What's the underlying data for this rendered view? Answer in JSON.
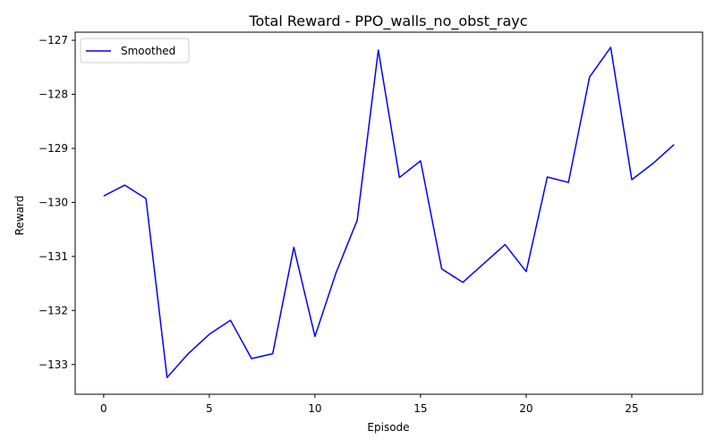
{
  "chart_data": {
    "type": "line",
    "title": "Total Reward - PPO_walls_no_obst_rayc",
    "xlabel": "Episode",
    "ylabel": "Reward",
    "xlim": [
      -1.35,
      28.35
    ],
    "ylim": [
      -133.55,
      -126.85
    ],
    "xticks": [
      0,
      5,
      10,
      15,
      20,
      25
    ],
    "yticks": [
      -133,
      -132,
      -131,
      -130,
      -129,
      -128,
      -127
    ],
    "grid": false,
    "legend_position": "top-left",
    "series": [
      {
        "name": "Smoothed",
        "color": "#0000ff",
        "x": [
          0,
          1,
          2,
          3,
          4,
          5,
          6,
          7,
          8,
          9,
          10,
          11,
          12,
          13,
          14,
          15,
          16,
          17,
          18,
          19,
          20,
          21,
          22,
          23,
          24,
          25,
          26,
          27
        ],
        "y": [
          -129.88,
          -129.68,
          -129.93,
          -133.24,
          -132.8,
          -132.44,
          -132.18,
          -132.89,
          -132.8,
          -130.83,
          -132.48,
          -131.3,
          -130.33,
          -127.18,
          -129.54,
          -129.23,
          -131.23,
          -131.48,
          -131.13,
          -130.78,
          -131.28,
          -129.53,
          -129.63,
          -127.68,
          -127.13,
          -129.58,
          -129.28,
          -128.93
        ]
      }
    ]
  }
}
